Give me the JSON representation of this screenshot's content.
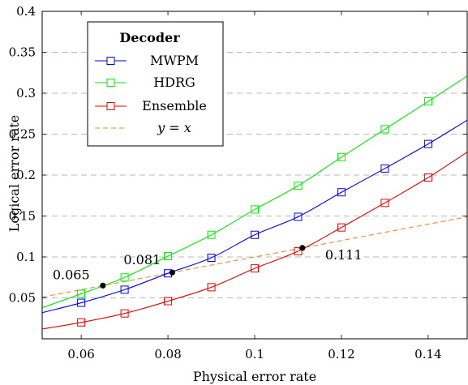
{
  "chart_data": {
    "type": "line",
    "xlabel": "Physical error rate",
    "ylabel": "Logical error rate",
    "xlim": [
      0.051,
      0.149
    ],
    "ylim": [
      0.0,
      0.4
    ],
    "x_ticks": [
      0.06,
      0.08,
      0.1,
      0.12,
      0.14
    ],
    "x_tick_labels": [
      "0.06",
      "0.08",
      "0.1",
      "0.12",
      "0.14"
    ],
    "y_ticks": [
      0.05,
      0.1,
      0.15,
      0.2,
      0.25,
      0.3,
      0.35,
      0.4
    ],
    "y_tick_labels": [
      "0.05",
      "0.1",
      "0.15",
      "0.2",
      "0.25",
      "0.3",
      "0.35",
      "0.4"
    ],
    "grid": "horizontal dashed",
    "legend": {
      "title": "Decoder",
      "placement": "top-left",
      "entries": [
        "MWPM",
        "HDRG",
        "Ensemble",
        "y = x"
      ]
    },
    "series": [
      {
        "name": "MWPM",
        "color": "#0000ff",
        "marker": "square",
        "x": [
          0.06,
          0.07,
          0.08,
          0.09,
          0.1,
          0.11,
          0.12,
          0.13,
          0.14
        ],
        "y": [
          0.044,
          0.06,
          0.08,
          0.099,
          0.127,
          0.149,
          0.179,
          0.208,
          0.238
        ],
        "curve_start": [
          0.051,
          0.032
        ],
        "curve_end": [
          0.149,
          0.267
        ]
      },
      {
        "name": "HDRG",
        "color": "#00ee00",
        "marker": "square",
        "x": [
          0.06,
          0.07,
          0.08,
          0.09,
          0.1,
          0.11,
          0.12,
          0.13,
          0.14
        ],
        "y": [
          0.055,
          0.075,
          0.101,
          0.127,
          0.158,
          0.187,
          0.222,
          0.256,
          0.29
        ],
        "curve_start": [
          0.051,
          0.038
        ],
        "curve_end": [
          0.149,
          0.321
        ]
      },
      {
        "name": "Ensemble",
        "color": "#ee0000",
        "marker": "square",
        "x": [
          0.06,
          0.07,
          0.08,
          0.09,
          0.1,
          0.11,
          0.12,
          0.13,
          0.14
        ],
        "y": [
          0.02,
          0.031,
          0.046,
          0.063,
          0.086,
          0.107,
          0.136,
          0.166,
          0.197
        ],
        "curve_start": [
          0.051,
          0.012
        ],
        "curve_end": [
          0.149,
          0.228
        ]
      },
      {
        "name": "y = x",
        "color": "#ee8833",
        "style": "dashed",
        "x": [
          0.051,
          0.149
        ],
        "y": [
          0.051,
          0.149
        ]
      }
    ],
    "annotations": [
      {
        "text": "0.065",
        "x": 0.065,
        "y": 0.065
      },
      {
        "text": "0.081",
        "x": 0.081,
        "y": 0.081
      },
      {
        "text": "0.111",
        "x": 0.111,
        "y": 0.111
      }
    ]
  }
}
